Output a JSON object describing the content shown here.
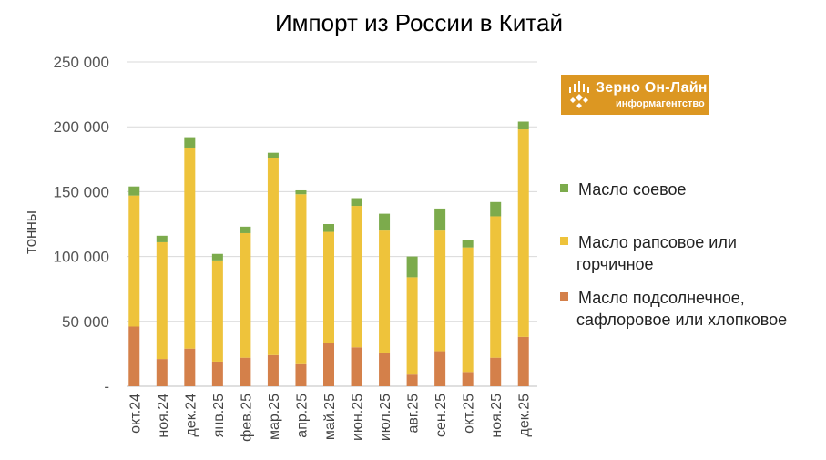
{
  "chart_data": {
    "type": "bar",
    "stacked": true,
    "title": "Импорт из России в Китай",
    "ylabel": "тонны",
    "xlabel": "",
    "ylim": [
      0,
      250000
    ],
    "yticks": [
      0,
      50000,
      100000,
      150000,
      200000,
      250000
    ],
    "ytick_labels": [
      "-",
      "50 000",
      "100 000",
      "150 000",
      "200 000",
      "250 000"
    ],
    "grid": true,
    "legend_position": "right",
    "categories": [
      "окт.24",
      "ноя.24",
      "дек.24",
      "янв.25",
      "фев.25",
      "мар.25",
      "апр.25",
      "май.25",
      "июн.25",
      "июл.25",
      "авг.25",
      "сен.25",
      "окт.25",
      "ноя.25",
      "дек.25"
    ],
    "series": [
      {
        "name": "Масло подсолнечное, сафлоровое или хлопковое",
        "color": "#d4804a",
        "values": [
          46000,
          21000,
          29000,
          19000,
          22000,
          24000,
          17000,
          33000,
          30000,
          26000,
          9000,
          27000,
          11000,
          22000,
          38000
        ]
      },
      {
        "name": "Масло рапсовое или горчичное",
        "color": "#eec33b",
        "values": [
          101000,
          90000,
          155000,
          78000,
          96000,
          152000,
          131000,
          86000,
          109000,
          94000,
          75000,
          93000,
          96000,
          109000,
          160000
        ]
      },
      {
        "name": "Масло соевое",
        "color": "#7cab4c",
        "values": [
          7000,
          5000,
          8000,
          5000,
          5000,
          4000,
          3000,
          6000,
          6000,
          13000,
          16000,
          17000,
          6000,
          11000,
          6000
        ]
      }
    ]
  },
  "legend": {
    "items": [
      {
        "label_lines": [
          "Масло соевое"
        ],
        "color": "#7cab4c"
      },
      {
        "label_lines": [
          "Масло рапсовое или",
          "горчичное"
        ],
        "color": "#eec33b"
      },
      {
        "label_lines": [
          "Масло подсолнечное,",
          "сафлоровое или хлопковое"
        ],
        "color": "#d4804a"
      }
    ]
  },
  "logo": {
    "name": "Зерно Он-Лайн",
    "subtitle": "информагентство",
    "color": "#dc9722"
  }
}
